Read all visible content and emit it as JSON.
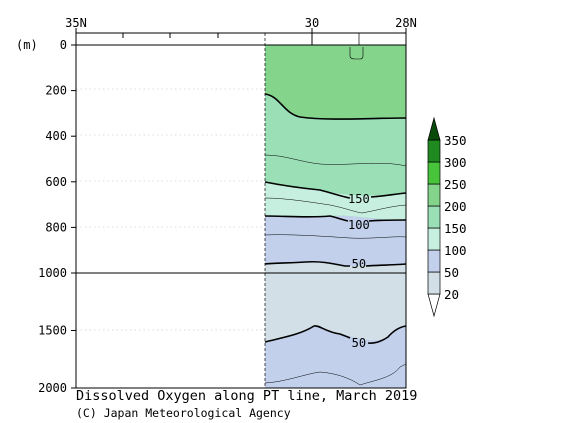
{
  "chart_data": {
    "type": "contour",
    "title": "Dissolved Oxygen along PT line, March 2019",
    "credit": "(C) Japan Meteorological Agency",
    "y_unit": "(m)",
    "x_axis": {
      "label_start": "35N",
      "label_mid": "30",
      "label_end": "28N",
      "range": [
        35,
        28
      ],
      "data_start_lat": 31.2
    },
    "y_axis": {
      "upper_ticks": [
        0,
        200,
        400,
        600,
        800,
        1000
      ],
      "lower_ticks": [
        1500,
        2000
      ],
      "break_depth": 1000
    },
    "colorbar": {
      "levels": [
        20,
        50,
        100,
        150,
        200,
        250,
        300,
        350
      ],
      "colors": [
        "#ffffff",
        "#d2dfe6",
        "#c2d0ec",
        "#c6efe0",
        "#9adfb6",
        "#85d48b",
        "#47c43a",
        "#1f8a1f",
        "#0a4a0a"
      ]
    },
    "contour_labels": [
      {
        "value": "150",
        "lat": 29.0,
        "depth": 675
      },
      {
        "value": "100",
        "lat": 29.0,
        "depth": 790
      },
      {
        "value": "50",
        "lat": 29.0,
        "depth": 960
      },
      {
        "value": "50",
        "lat": 29.0,
        "depth": 1610
      }
    ]
  }
}
